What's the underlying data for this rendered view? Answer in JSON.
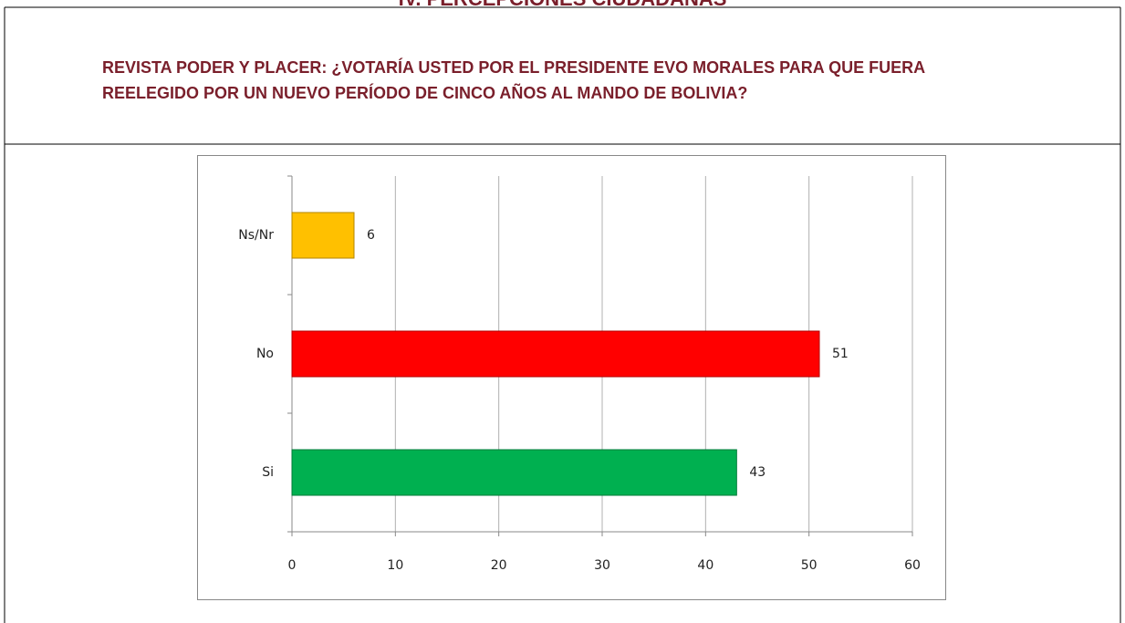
{
  "heading": "IV. PERCEPCIONES CIUDADANAS",
  "question": [
    "REVISTA PODER Y PLACER: ¿VOTARÍA USTED POR EL PRESIDENTE EVO MORALES PARA QUE FUERA",
    "REELEGIDO POR UN NUEVO PERÍODO DE CINCO AÑOS AL MANDO DE BOLIVIA?"
  ],
  "chart_data": {
    "type": "hbar",
    "categories": [
      "Ns/Nr",
      "No",
      "Si"
    ],
    "values": [
      6,
      51,
      43
    ],
    "colors": [
      "#ffc000",
      "#ff0000",
      "#00b050"
    ],
    "xlim": [
      0,
      60
    ],
    "xticks": [
      0,
      10,
      20,
      30,
      40,
      50,
      60
    ],
    "grid": true
  }
}
